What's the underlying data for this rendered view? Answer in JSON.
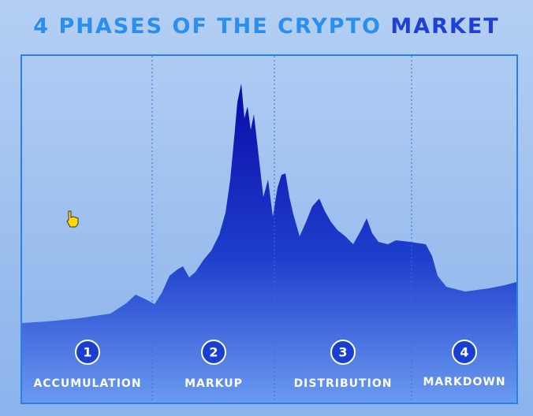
{
  "title": {
    "lead": "4 PHASES OF THE CRYPTO",
    "emphasis": "MARKET"
  },
  "phases": [
    {
      "number": "1",
      "label": "ACCUMULATION"
    },
    {
      "number": "2",
      "label": "MARKUP"
    },
    {
      "number": "3",
      "label": "DISTRIBUTION"
    },
    {
      "number": "4",
      "label": "MARKDOWN"
    }
  ]
}
